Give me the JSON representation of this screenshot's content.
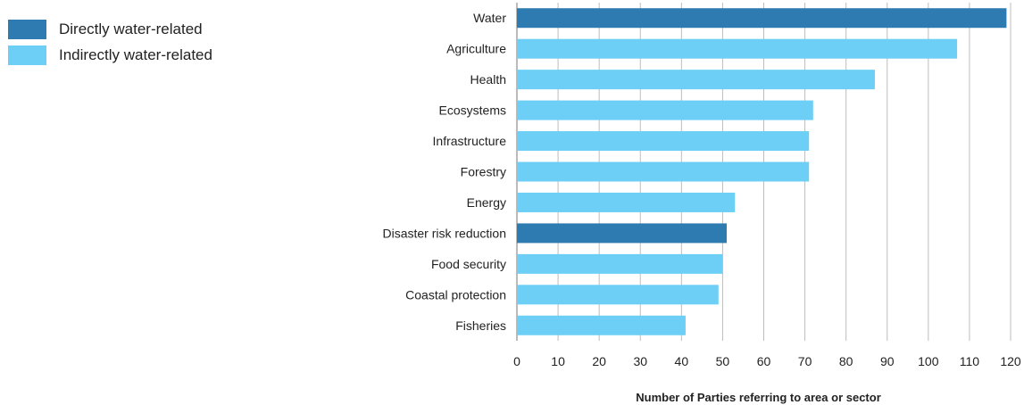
{
  "legend": {
    "items": [
      {
        "label": "Directly water-related",
        "color": "#2e7bb1"
      },
      {
        "label": "Indirectly water-related",
        "color": "#6dcff6"
      }
    ]
  },
  "chart_data": {
    "type": "bar",
    "orientation": "horizontal",
    "xlabel": "Number of Parties referring to area or sector",
    "xlim": [
      0,
      120
    ],
    "xticks": [
      0,
      10,
      20,
      30,
      40,
      50,
      60,
      70,
      80,
      90,
      100,
      110,
      120
    ],
    "grid": true,
    "legend_position": "top-left",
    "categories": [
      "Water",
      "Agriculture",
      "Health",
      "Ecosystems",
      "Infrastructure",
      "Forestry",
      "Energy",
      "Disaster risk reduction",
      "Food security",
      "Coastal protection",
      "Fisheries"
    ],
    "values": [
      119,
      107,
      87,
      72,
      71,
      71,
      53,
      51,
      50,
      49,
      41
    ],
    "groups": [
      "Directly water-related",
      "Indirectly water-related",
      "Indirectly water-related",
      "Indirectly water-related",
      "Indirectly water-related",
      "Indirectly water-related",
      "Indirectly water-related",
      "Directly water-related",
      "Indirectly water-related",
      "Indirectly water-related",
      "Indirectly water-related"
    ],
    "colors": {
      "Directly water-related": "#2e7bb1",
      "Indirectly water-related": "#6dcff6"
    }
  }
}
